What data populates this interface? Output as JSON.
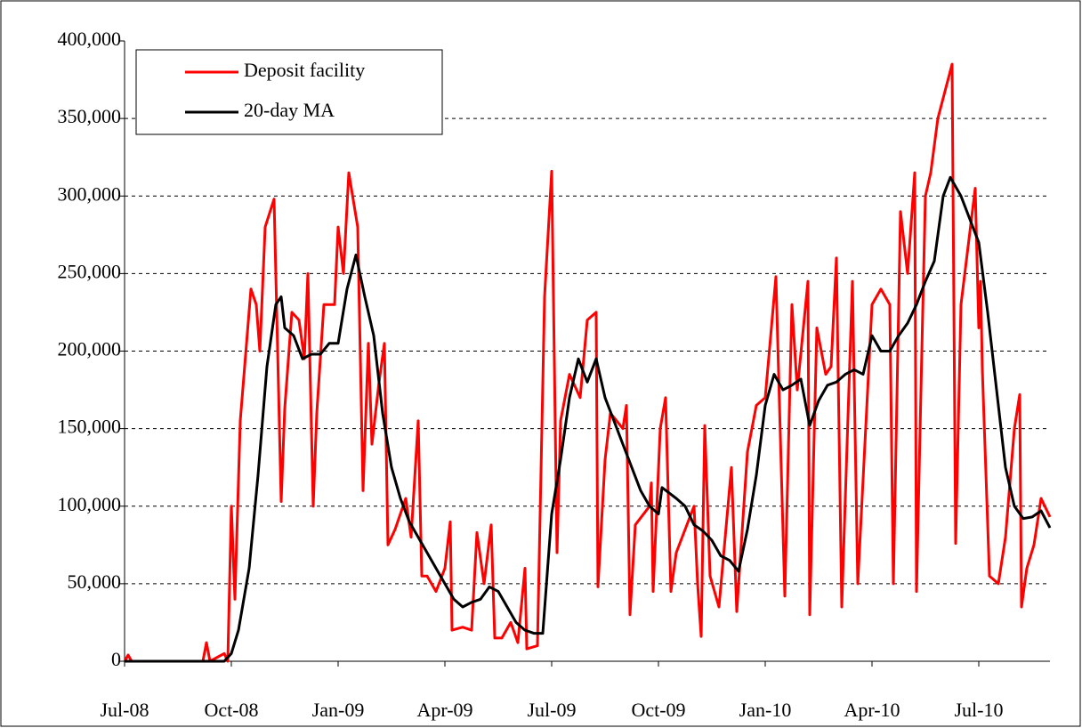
{
  "chart_data": {
    "type": "line",
    "xlim": [
      0,
      26
    ],
    "xticks": [
      {
        "value": 0,
        "label": "Jul-08"
      },
      {
        "value": 3,
        "label": "Oct-08"
      },
      {
        "value": 6,
        "label": "Jan-09"
      },
      {
        "value": 9,
        "label": "Apr-09"
      },
      {
        "value": 12,
        "label": "Jul-09"
      },
      {
        "value": 15,
        "label": "Oct-09"
      },
      {
        "value": 18,
        "label": "Jan-10"
      },
      {
        "value": 21,
        "label": "Apr-10"
      },
      {
        "value": 24,
        "label": "Jul-10"
      }
    ],
    "ylim": [
      0,
      400000
    ],
    "yticks": [
      0,
      {
        "value": 50000,
        "label": "50,000"
      },
      {
        "value": 100000,
        "label": "100,000"
      },
      {
        "value": 150000,
        "label": "150,000"
      },
      {
        "value": 200000,
        "label": "200,000"
      },
      {
        "value": 250000,
        "label": "250,000"
      },
      {
        "value": 300000,
        "label": "300,000"
      },
      {
        "value": 350000,
        "label": "350,000"
      },
      {
        "value": 400000,
        "label": "400,000"
      }
    ],
    "grid": true,
    "legend": "upper left",
    "series": [
      {
        "name": "Deposit facility",
        "color": "#ff0000",
        "x": [
          0,
          0.1,
          0.2,
          1,
          2.2,
          2.3,
          2.4,
          2.8,
          2.9,
          3.0,
          3.1,
          3.25,
          3.55,
          3.7,
          3.8,
          3.95,
          4.2,
          4.4,
          4.5,
          4.7,
          4.9,
          5.05,
          5.15,
          5.3,
          5.4,
          5.6,
          5.9,
          6.0,
          6.15,
          6.3,
          6.55,
          6.7,
          6.85,
          6.95,
          7.15,
          7.3,
          7.4,
          7.6,
          7.9,
          8.05,
          8.25,
          8.35,
          8.5,
          8.75,
          9.0,
          9.15,
          9.2,
          9.5,
          9.75,
          9.9,
          10.1,
          10.3,
          10.4,
          10.6,
          10.85,
          11.05,
          11.25,
          11.3,
          11.6,
          11.8,
          12.0,
          12.15,
          12.25,
          12.5,
          12.8,
          13.0,
          13.25,
          13.3,
          13.5,
          13.65,
          14.0,
          14.1,
          14.2,
          14.35,
          14.75,
          14.8,
          14.85,
          15.05,
          15.2,
          15.35,
          15.5,
          15.75,
          16.0,
          16.1,
          16.2,
          16.3,
          16.45,
          16.7,
          17.05,
          17.2,
          17.5,
          17.75,
          18.0,
          18.3,
          18.55,
          18.75,
          18.9,
          19.2,
          19.25,
          19.45,
          19.7,
          19.85,
          20.0,
          20.15,
          20.45,
          20.6,
          21.0,
          21.25,
          21.5,
          21.6,
          21.8,
          22.0,
          22.2,
          22.25,
          22.4,
          22.5,
          22.65,
          22.85,
          23.25,
          23.35,
          23.5,
          23.9,
          24.0,
          24.05,
          24.1,
          24.3,
          24.55,
          24.75,
          25.0,
          25.15,
          25.2,
          25.35,
          25.55,
          25.75,
          26.0
        ],
        "values": [
          0,
          4000,
          0,
          0,
          0,
          12000,
          0,
          5000,
          0,
          100000,
          40000,
          155000,
          240000,
          230000,
          200000,
          280000,
          298000,
          103000,
          163000,
          225000,
          220000,
          195000,
          250000,
          100000,
          160000,
          230000,
          230000,
          280000,
          250000,
          315000,
          280000,
          110000,
          205000,
          140000,
          180000,
          205000,
          75000,
          85000,
          105000,
          80000,
          155000,
          55000,
          55000,
          45000,
          60000,
          90000,
          20000,
          22000,
          20000,
          83000,
          50000,
          88000,
          15000,
          15000,
          25000,
          12000,
          60000,
          8000,
          10000,
          235000,
          316000,
          70000,
          155000,
          185000,
          170000,
          220000,
          225000,
          48000,
          130000,
          160000,
          150000,
          165000,
          30000,
          88000,
          100000,
          115000,
          45000,
          150000,
          170000,
          45000,
          70000,
          85000,
          100000,
          50000,
          16000,
          152000,
          55000,
          35000,
          125000,
          32000,
          135000,
          165000,
          170000,
          248000,
          42000,
          230000,
          175000,
          245000,
          30000,
          215000,
          185000,
          190000,
          260000,
          35000,
          245000,
          50000,
          230000,
          240000,
          230000,
          50000,
          290000,
          250000,
          315000,
          45000,
          200000,
          300000,
          315000,
          350000,
          385000,
          76000,
          230000,
          305000,
          215000,
          245000,
          188000,
          55000,
          50000,
          80000,
          150000,
          172000,
          35000,
          60000,
          75000,
          105000,
          93000
        ]
      },
      {
        "name": "20-day MA",
        "color": "#000000",
        "x": [
          0,
          2.8,
          3.0,
          3.2,
          3.5,
          3.75,
          4.0,
          4.25,
          4.4,
          4.5,
          4.75,
          5.0,
          5.25,
          5.5,
          5.75,
          6.0,
          6.25,
          6.5,
          6.75,
          7.0,
          7.25,
          7.5,
          7.75,
          8.0,
          8.25,
          8.5,
          8.75,
          9.0,
          9.25,
          9.5,
          9.75,
          10.0,
          10.25,
          10.5,
          10.75,
          11.0,
          11.25,
          11.5,
          11.75,
          12.0,
          12.25,
          12.5,
          12.75,
          13.0,
          13.25,
          13.5,
          13.75,
          14.0,
          14.25,
          14.5,
          14.75,
          15.0,
          15.1,
          15.5,
          15.75,
          16.0,
          16.25,
          16.5,
          16.75,
          17.0,
          17.25,
          17.5,
          17.75,
          18.0,
          18.25,
          18.5,
          18.75,
          19.0,
          19.25,
          19.5,
          19.75,
          20.0,
          20.25,
          20.5,
          20.75,
          21.0,
          21.25,
          21.5,
          21.75,
          22.0,
          22.25,
          22.5,
          22.75,
          23.0,
          23.2,
          23.5,
          23.75,
          24.0,
          24.25,
          24.5,
          24.75,
          25.0,
          25.25,
          25.5,
          25.75,
          26.0
        ],
        "values": [
          0,
          0,
          5000,
          20000,
          60000,
          120000,
          190000,
          230000,
          235000,
          215000,
          210000,
          195000,
          198000,
          198000,
          205000,
          205000,
          240000,
          262000,
          235000,
          210000,
          160000,
          125000,
          105000,
          90000,
          80000,
          70000,
          60000,
          50000,
          40000,
          35000,
          38000,
          40000,
          48000,
          45000,
          35000,
          25000,
          20000,
          18000,
          18000,
          95000,
          130000,
          170000,
          195000,
          180000,
          195000,
          170000,
          155000,
          140000,
          125000,
          110000,
          100000,
          95000,
          112000,
          105000,
          100000,
          88000,
          84000,
          78000,
          68000,
          65000,
          58000,
          85000,
          120000,
          165000,
          185000,
          175000,
          178000,
          182000,
          152000,
          168000,
          178000,
          180000,
          185000,
          188000,
          185000,
          210000,
          200000,
          200000,
          210000,
          218000,
          230000,
          245000,
          258000,
          300000,
          312000,
          300000,
          285000,
          270000,
          225000,
          175000,
          125000,
          100000,
          92000,
          93000,
          97000,
          86000
        ]
      }
    ]
  }
}
